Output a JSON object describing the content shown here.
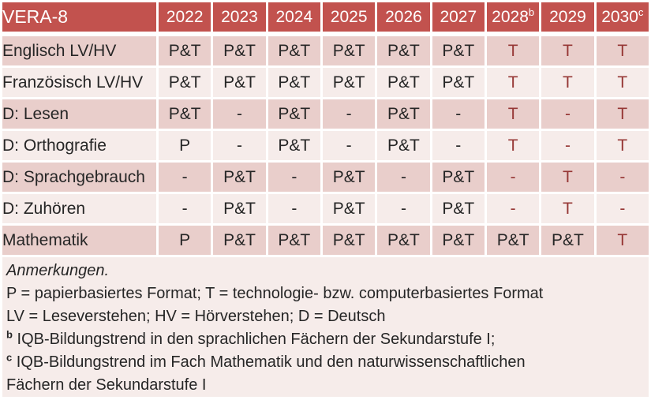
{
  "colors": {
    "header_bg": "#C2524E",
    "band_dark": "#E9CECB",
    "band_light": "#F6ECEA",
    "text_red": "#963735",
    "text_black": "#262626",
    "header_text": "#FFFFFF",
    "grid": "#FFFFFF"
  },
  "table": {
    "title": "VERA-8",
    "years": [
      {
        "label": "2022",
        "sup": ""
      },
      {
        "label": "2023",
        "sup": ""
      },
      {
        "label": "2024",
        "sup": ""
      },
      {
        "label": "2025",
        "sup": ""
      },
      {
        "label": "2026",
        "sup": ""
      },
      {
        "label": "2027",
        "sup": ""
      },
      {
        "label": "2028",
        "sup": "b"
      },
      {
        "label": "2029",
        "sup": ""
      },
      {
        "label": "2030",
        "sup": "c"
      }
    ],
    "rows": [
      {
        "label": "Englisch LV/HV",
        "cells": [
          {
            "text": "P&T",
            "red": false
          },
          {
            "text": "P&T",
            "red": false
          },
          {
            "text": "P&T",
            "red": false
          },
          {
            "text": "P&T",
            "red": false
          },
          {
            "text": "P&T",
            "red": false
          },
          {
            "text": "P&T",
            "red": false
          },
          {
            "text": "T",
            "red": true
          },
          {
            "text": "T",
            "red": true
          },
          {
            "text": "T",
            "red": true
          }
        ]
      },
      {
        "label": "Französisch LV/HV",
        "cells": [
          {
            "text": "P&T",
            "red": false
          },
          {
            "text": "P&T",
            "red": false
          },
          {
            "text": "P&T",
            "red": false
          },
          {
            "text": "P&T",
            "red": false
          },
          {
            "text": "P&T",
            "red": false
          },
          {
            "text": "P&T",
            "red": false
          },
          {
            "text": "T",
            "red": true
          },
          {
            "text": "T",
            "red": true
          },
          {
            "text": "T",
            "red": true
          }
        ]
      },
      {
        "label": "D: Lesen",
        "cells": [
          {
            "text": "P&T",
            "red": false
          },
          {
            "text": "-",
            "red": false
          },
          {
            "text": "P&T",
            "red": false
          },
          {
            "text": "-",
            "red": false
          },
          {
            "text": "P&T",
            "red": false
          },
          {
            "text": "-",
            "red": false
          },
          {
            "text": "T",
            "red": true
          },
          {
            "text": "-",
            "red": true
          },
          {
            "text": "T",
            "red": true
          }
        ]
      },
      {
        "label": "D: Orthografie",
        "cells": [
          {
            "text": "P",
            "red": false
          },
          {
            "text": "-",
            "red": false
          },
          {
            "text": "P&T",
            "red": false
          },
          {
            "text": "-",
            "red": false
          },
          {
            "text": "P&T",
            "red": false
          },
          {
            "text": "-",
            "red": false
          },
          {
            "text": "T",
            "red": true
          },
          {
            "text": "-",
            "red": true
          },
          {
            "text": "T",
            "red": true
          }
        ]
      },
      {
        "label": "D: Sprachgebrauch",
        "cells": [
          {
            "text": "-",
            "red": false
          },
          {
            "text": "P&T",
            "red": false
          },
          {
            "text": "-",
            "red": false
          },
          {
            "text": "P&T",
            "red": false
          },
          {
            "text": "-",
            "red": false
          },
          {
            "text": "P&T",
            "red": false
          },
          {
            "text": "-",
            "red": true
          },
          {
            "text": "T",
            "red": true
          },
          {
            "text": "-",
            "red": true
          }
        ]
      },
      {
        "label": "D: Zuhören",
        "cells": [
          {
            "text": "-",
            "red": false
          },
          {
            "text": "P&T",
            "red": false
          },
          {
            "text": "-",
            "red": false
          },
          {
            "text": "P&T",
            "red": false
          },
          {
            "text": "-",
            "red": false
          },
          {
            "text": "P&T",
            "red": false
          },
          {
            "text": "-",
            "red": true
          },
          {
            "text": "T",
            "red": true
          },
          {
            "text": "-",
            "red": true
          }
        ]
      },
      {
        "label": "Mathematik",
        "cells": [
          {
            "text": "P",
            "red": false
          },
          {
            "text": "P&T",
            "red": false
          },
          {
            "text": "P&T",
            "red": false
          },
          {
            "text": "P&T",
            "red": false
          },
          {
            "text": "P&T",
            "red": false
          },
          {
            "text": "P&T",
            "red": false
          },
          {
            "text": "P&T",
            "red": false
          },
          {
            "text": "P&T",
            "red": false
          },
          {
            "text": "T",
            "red": true
          }
        ]
      }
    ]
  },
  "notes": {
    "lines": [
      {
        "sup": "",
        "italic": true,
        "text": "Anmerkungen."
      },
      {
        "sup": "",
        "italic": false,
        "text": "P = papierbasiertes Format; T = technologie- bzw. computerbasiertes Format"
      },
      {
        "sup": "",
        "italic": false,
        "text": "LV = Leseverstehen; HV = Hörverstehen; D = Deutsch"
      },
      {
        "sup": "b",
        "italic": false,
        "text": "IQB-Bildungstrend in den sprachlichen Fächern der Sekundarstufe I;"
      },
      {
        "sup": "c",
        "italic": false,
        "text": "IQB-Bildungstrend im Fach Mathematik und den naturwissenschaftlichen"
      },
      {
        "sup": "",
        "italic": false,
        "text": "Fächern der Sekundarstufe I"
      }
    ]
  }
}
